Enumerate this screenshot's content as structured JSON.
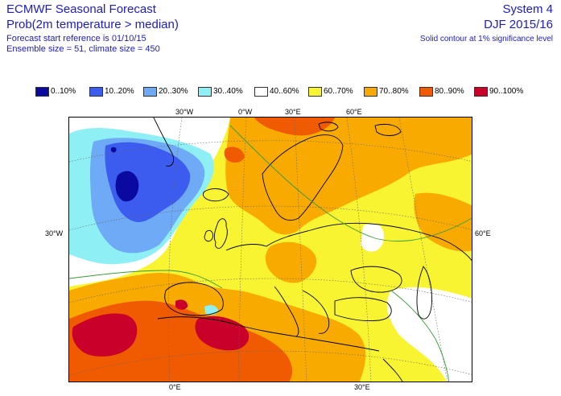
{
  "header": {
    "title": "ECMWF Seasonal Forecast",
    "subtitle": "Prob(2m temperature > median)",
    "forecast_start": "Forecast start reference is 01/10/15",
    "ensemble": "Ensemble size = 51, climate size = 450",
    "system": "System 4",
    "period": "DJF 2015/16",
    "significance": "Solid contour at 1% significance level"
  },
  "legend": [
    {
      "label": "0..10%",
      "color": "#0a0aa0"
    },
    {
      "label": "10..20%",
      "color": "#3c5cf0"
    },
    {
      "label": "20..30%",
      "color": "#6eaaf5"
    },
    {
      "label": "30..40%",
      "color": "#8ef0f5"
    },
    {
      "label": "40..60%",
      "color": "#ffffff"
    },
    {
      "label": "60..70%",
      "color": "#f8f432"
    },
    {
      "label": "70..80%",
      "color": "#f8aa00"
    },
    {
      "label": "80..90%",
      "color": "#f05a00"
    },
    {
      "label": "90..100%",
      "color": "#c8002a"
    }
  ],
  "axes": {
    "top_ticks": [
      "30°W",
      "0°W",
      "30°E",
      "60°E"
    ],
    "bottom_ticks": [
      "0°E",
      "30°E"
    ],
    "left_ticks": [
      "30°W"
    ],
    "right_ticks": [
      "60°E"
    ]
  }
}
